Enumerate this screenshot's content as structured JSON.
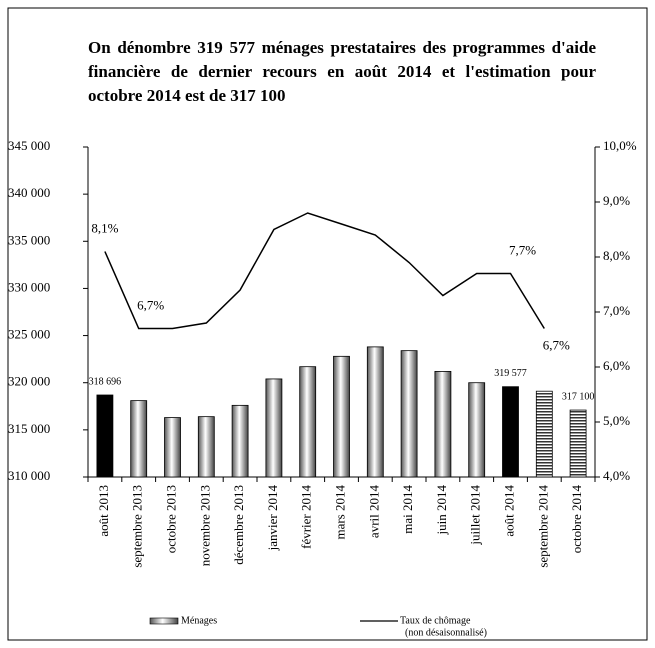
{
  "chart_data": {
    "type": "bar",
    "title": "On dénombre 319 577 ménages prestataires des programmes d'aide financière de dernier recours en août 2014 et l'estimation pour octobre 2014 est de 317 100",
    "categories": [
      "août 2013",
      "septembre 2013",
      "octobre 2013",
      "novembre 2013",
      "décembre 2013",
      "janvier 2014",
      "février 2014",
      "mars 2014",
      "avril 2014",
      "mai 2014",
      "juin 2014",
      "juillet 2014",
      "août 2014",
      "septembre 2014",
      "octobre 2014"
    ],
    "series": [
      {
        "name": "Ménages",
        "type": "bar",
        "values": [
          318696,
          318100,
          316300,
          316400,
          317600,
          320400,
          321700,
          322800,
          323800,
          323400,
          321200,
          320000,
          319577,
          319100,
          317100
        ],
        "value_labels": [
          "318 696",
          null,
          null,
          null,
          null,
          null,
          null,
          null,
          null,
          null,
          null,
          null,
          "319 577",
          null,
          "317 100"
        ],
        "fills": [
          "solid",
          "gradient",
          "gradient",
          "gradient",
          "gradient",
          "gradient",
          "gradient",
          "gradient",
          "gradient",
          "gradient",
          "gradient",
          "gradient",
          "solid",
          "striped",
          "striped"
        ],
        "color": "#000000"
      },
      {
        "name": "Taux de chômage",
        "name_note": "(non désaisonnalisé)",
        "type": "line",
        "axis": "y2",
        "color": "#000000",
        "values": [
          8.1,
          6.7,
          6.7,
          6.8,
          7.4,
          8.5,
          8.8,
          8.6,
          8.4,
          7.9,
          7.3,
          7.7,
          7.7,
          6.7,
          null
        ],
        "value_labels": [
          "8,1%",
          "6,7%",
          null,
          null,
          null,
          null,
          null,
          null,
          null,
          null,
          null,
          null,
          "7,7%",
          "6,7%",
          null
        ]
      }
    ],
    "ylim": [
      310000,
      345000
    ],
    "yticks": [
      {
        "value": 310000,
        "label": "310 000"
      },
      {
        "value": 315000,
        "label": "315 000"
      },
      {
        "value": 320000,
        "label": "320 000"
      },
      {
        "value": 325000,
        "label": "325 000"
      },
      {
        "value": 330000,
        "label": "330 000"
      },
      {
        "value": 335000,
        "label": "335 000"
      },
      {
        "value": 340000,
        "label": "340 000"
      },
      {
        "value": 345000,
        "label": "345 000"
      }
    ],
    "y2lim": [
      4,
      10
    ],
    "y2ticks": [
      {
        "value": 4,
        "label": "4,0%"
      },
      {
        "value": 5,
        "label": "5,0%"
      },
      {
        "value": 6,
        "label": "6,0%"
      },
      {
        "value": 7,
        "label": "7,0%"
      },
      {
        "value": 8,
        "label": "8,0%"
      },
      {
        "value": 9,
        "label": "9,0%"
      },
      {
        "value": 10,
        "label": "10,0%"
      }
    ],
    "grid": false
  }
}
